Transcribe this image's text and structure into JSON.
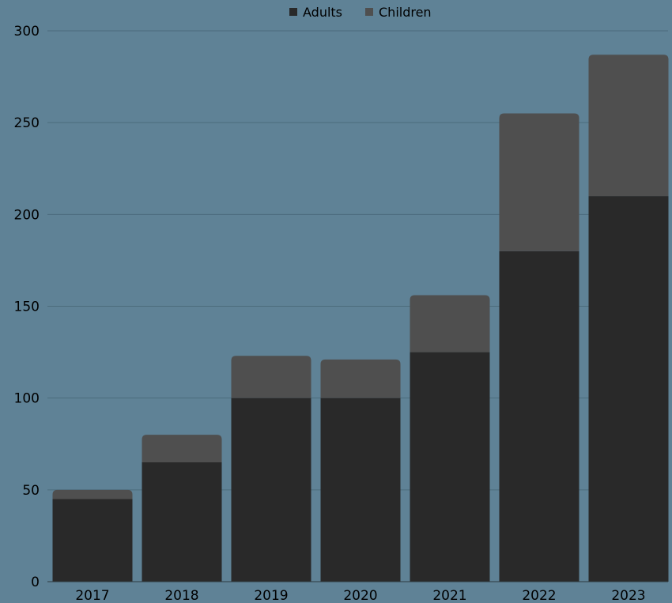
{
  "chart_data": {
    "type": "bar",
    "stacked": true,
    "categories": [
      "2017",
      "2018",
      "2019",
      "2020",
      "2021",
      "2022",
      "2023"
    ],
    "series": [
      {
        "name": "Adults",
        "values": [
          45,
          65,
          100,
          100,
          125,
          180,
          210
        ],
        "color": "#292929"
      },
      {
        "name": "Children",
        "values": [
          5,
          15,
          23,
          21,
          31,
          75,
          77
        ],
        "color": "#4f4f4f"
      }
    ],
    "title": "",
    "xlabel": "",
    "ylabel": "",
    "ylim": [
      0,
      300
    ],
    "yticks": [
      "0",
      "50",
      "100",
      "150",
      "200",
      "250",
      "300"
    ],
    "grid": true,
    "legend_position": "top-center"
  },
  "colors": {
    "background": "#5f8296",
    "gridline": "#4b6b7c",
    "axis_line": "#2e3a40"
  }
}
